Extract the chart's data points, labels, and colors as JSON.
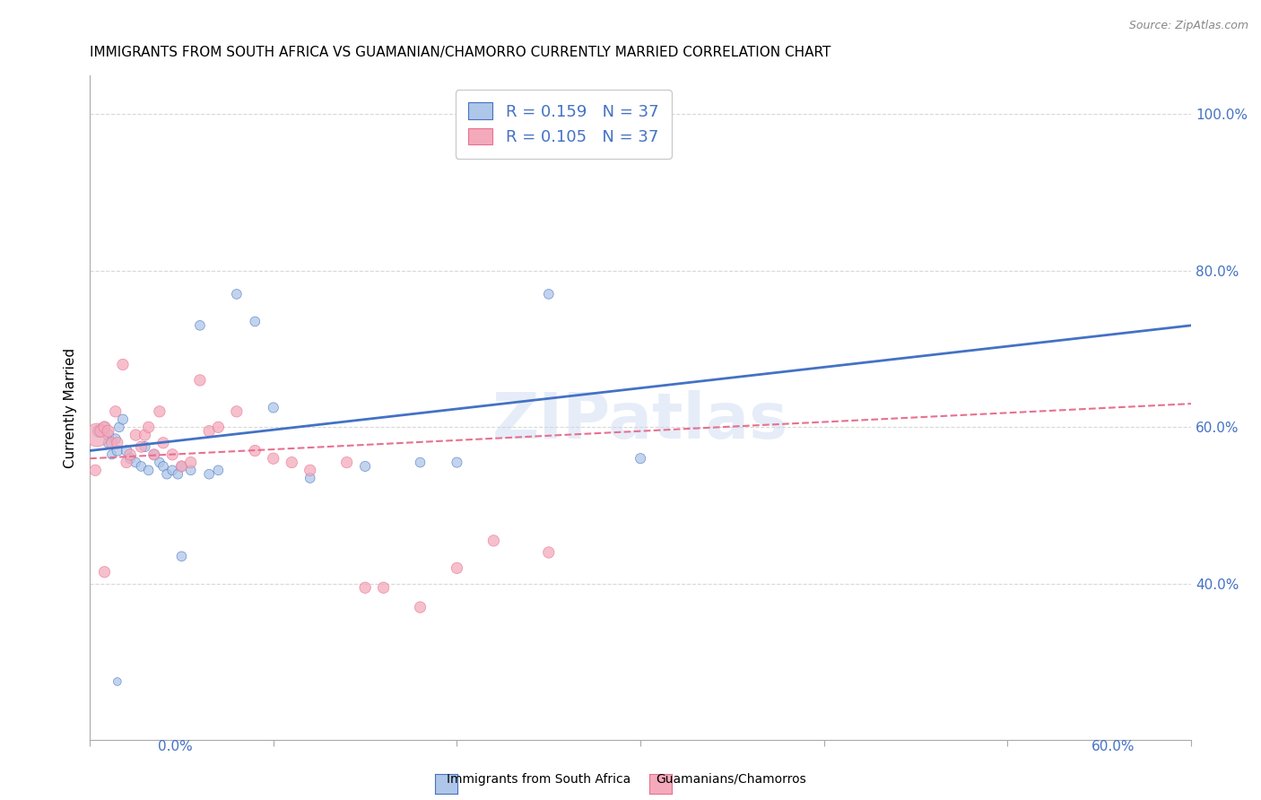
{
  "title": "IMMIGRANTS FROM SOUTH AFRICA VS GUAMANIAN/CHAMORRO CURRENTLY MARRIED CORRELATION CHART",
  "source": "Source: ZipAtlas.com",
  "ylabel": "Currently Married",
  "xlim": [
    0.0,
    0.6
  ],
  "ylim": [
    0.2,
    1.05
  ],
  "legend_r1": "0.159",
  "legend_n1": "37",
  "legend_r2": "0.105",
  "legend_n2": "37",
  "color_blue": "#AEC6E8",
  "color_pink": "#F4AABB",
  "line_blue": "#4472C4",
  "line_pink": "#E87090",
  "watermark": "ZIPatlas",
  "blue_scatter_x": [
    0.005,
    0.008,
    0.01,
    0.01,
    0.012,
    0.014,
    0.015,
    0.016,
    0.018,
    0.02,
    0.022,
    0.025,
    0.028,
    0.03,
    0.032,
    0.035,
    0.038,
    0.04,
    0.042,
    0.045,
    0.048,
    0.05,
    0.055,
    0.06,
    0.065,
    0.07,
    0.08,
    0.09,
    0.1,
    0.12,
    0.15,
    0.18,
    0.2,
    0.25,
    0.3,
    0.05,
    0.015
  ],
  "blue_scatter_y": [
    0.595,
    0.6,
    0.59,
    0.58,
    0.565,
    0.585,
    0.57,
    0.6,
    0.61,
    0.57,
    0.56,
    0.555,
    0.55,
    0.575,
    0.545,
    0.565,
    0.555,
    0.55,
    0.54,
    0.545,
    0.54,
    0.55,
    0.545,
    0.73,
    0.54,
    0.545,
    0.77,
    0.735,
    0.625,
    0.535,
    0.55,
    0.555,
    0.555,
    0.77,
    0.56,
    0.435,
    0.275
  ],
  "blue_scatter_size": [
    100,
    70,
    80,
    60,
    55,
    65,
    70,
    60,
    65,
    70,
    65,
    60,
    60,
    65,
    60,
    65,
    60,
    60,
    60,
    60,
    60,
    60,
    60,
    60,
    60,
    60,
    60,
    60,
    65,
    60,
    65,
    60,
    65,
    60,
    65,
    60,
    40
  ],
  "pink_scatter_x": [
    0.004,
    0.006,
    0.008,
    0.01,
    0.012,
    0.014,
    0.015,
    0.018,
    0.02,
    0.022,
    0.025,
    0.028,
    0.03,
    0.032,
    0.035,
    0.038,
    0.04,
    0.045,
    0.05,
    0.055,
    0.06,
    0.065,
    0.07,
    0.08,
    0.09,
    0.1,
    0.11,
    0.12,
    0.14,
    0.15,
    0.16,
    0.18,
    0.2,
    0.22,
    0.25,
    0.003,
    0.008
  ],
  "pink_scatter_y": [
    0.59,
    0.595,
    0.6,
    0.595,
    0.58,
    0.62,
    0.58,
    0.68,
    0.555,
    0.565,
    0.59,
    0.575,
    0.59,
    0.6,
    0.565,
    0.62,
    0.58,
    0.565,
    0.55,
    0.555,
    0.66,
    0.595,
    0.6,
    0.62,
    0.57,
    0.56,
    0.555,
    0.545,
    0.555,
    0.395,
    0.395,
    0.37,
    0.42,
    0.455,
    0.44,
    0.545,
    0.415
  ],
  "pink_scatter_size": [
    350,
    90,
    90,
    90,
    80,
    80,
    80,
    80,
    80,
    80,
    80,
    80,
    80,
    80,
    80,
    80,
    80,
    80,
    80,
    80,
    80,
    80,
    80,
    80,
    80,
    80,
    80,
    80,
    80,
    80,
    80,
    80,
    80,
    80,
    80,
    80,
    80
  ],
  "blue_line_x": [
    0.0,
    0.6
  ],
  "blue_line_y": [
    0.57,
    0.73
  ],
  "pink_line_x": [
    0.0,
    0.6
  ],
  "pink_line_y": [
    0.56,
    0.63
  ],
  "grid_color": "#D8D8D8",
  "background_color": "#FFFFFF",
  "title_fontsize": 11,
  "axis_label_fontsize": 11,
  "tick_fontsize": 11,
  "legend_fontsize": 13
}
